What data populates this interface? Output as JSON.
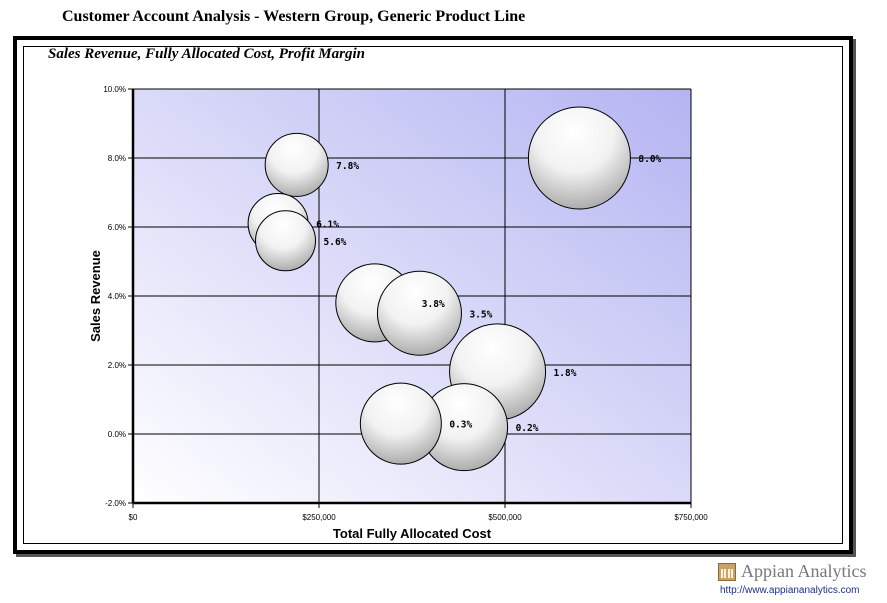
{
  "page": {
    "title": "Customer Account Analysis - Western Group, Generic Product Line"
  },
  "branding": {
    "logo_text": "Appian Analytics",
    "url": "http://www.appiananalytics.com"
  },
  "colors": {
    "plot_bg_light": "#ffffff",
    "plot_bg_dark": "#b4b4f2",
    "bubble_fill": "#ffffff",
    "bubble_shade": "#9a9a9a",
    "text_link": "#1a2e8a"
  },
  "chart_data": {
    "type": "scatter",
    "variant": "bubble",
    "title": "Sales Revenue, Fully Allocated Cost, Profit Margin",
    "xlabel": "Total Fully Allocated Cost",
    "ylabel": "Sales Revenue",
    "xlim": [
      0,
      750000
    ],
    "ylim": [
      -0.02,
      0.1
    ],
    "x_ticks": [
      {
        "value": 0,
        "label": "$0"
      },
      {
        "value": 250000,
        "label": "$250,000"
      },
      {
        "value": 500000,
        "label": "$500,000"
      },
      {
        "value": 750000,
        "label": "$750,000"
      }
    ],
    "y_ticks": [
      {
        "value": -0.02,
        "label": "-2.0%"
      },
      {
        "value": 0.0,
        "label": "0.0%"
      },
      {
        "value": 0.02,
        "label": "2.0%"
      },
      {
        "value": 0.04,
        "label": "4.0%"
      },
      {
        "value": 0.06,
        "label": "6.0%"
      },
      {
        "value": 0.08,
        "label": "8.0%"
      },
      {
        "value": 0.1,
        "label": "10.0%"
      }
    ],
    "grid": true,
    "legend": "none",
    "points": [
      {
        "x": 600000,
        "y": 0.08,
        "size": 1.7,
        "label": "8.0%"
      },
      {
        "x": 220000,
        "y": 0.078,
        "size": 1.05,
        "label": "7.8%"
      },
      {
        "x": 195000,
        "y": 0.061,
        "size": 1.0,
        "label": "6.1%"
      },
      {
        "x": 205000,
        "y": 0.056,
        "size": 1.0,
        "label": "5.6%"
      },
      {
        "x": 325000,
        "y": 0.038,
        "size": 1.3,
        "label": "3.8%"
      },
      {
        "x": 385000,
        "y": 0.035,
        "size": 1.4,
        "label": "3.5%"
      },
      {
        "x": 490000,
        "y": 0.018,
        "size": 1.6,
        "label": "1.8%"
      },
      {
        "x": 445000,
        "y": 0.002,
        "size": 1.45,
        "label": "0.2%"
      },
      {
        "x": 360000,
        "y": 0.003,
        "size": 1.35,
        "label": "0.3%"
      }
    ]
  }
}
